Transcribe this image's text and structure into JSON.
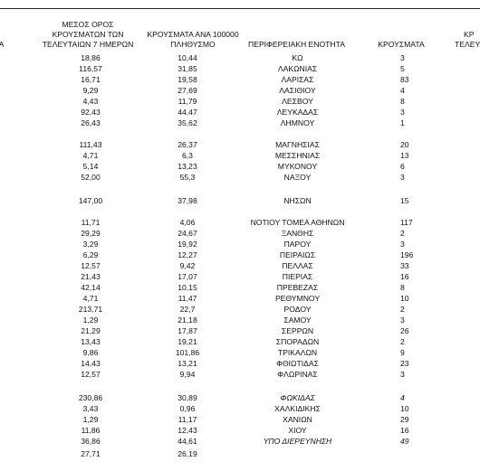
{
  "header": {
    "partial_left": "ΤΑ",
    "avg_col": [
      "ΜΕΣΟΣ ΟΡΟΣ",
      "ΚΡΟΥΣΜΑΤΩΝ ΤΩΝ",
      "ΤΕΛΕΥΤΑΙΩΝ 7 ΗΜΕΡΩΝ"
    ],
    "rate_col": [
      "ΚΡΟΥΣΜΑΤΑ ΑΝΑ 100000",
      "ΠΛΗΘΥΣΜΟ"
    ],
    "unit_col": "ΠΕΡΙΦΕΡΕΙΑΚΗ ΕΝΟΤΗΤΑ",
    "cases_col": "ΚΡΟΥΣΜΑΤΑ",
    "partial_right": [
      "ΚΡ",
      "ΤΕΛΕΥ"
    ]
  },
  "rows": [
    {
      "avg": "18,86",
      "rate": "10,44",
      "unit": "ΚΩ",
      "cases": "3"
    },
    {
      "avg": "116,57",
      "rate": "31,85",
      "unit": "ΛΑΚΩΝΙΑΣ",
      "cases": "5"
    },
    {
      "avg": "16,71",
      "rate": "19,58",
      "unit": "ΛΑΡΙΣΑΣ",
      "cases": "83"
    },
    {
      "avg": "9,29",
      "rate": "27,69",
      "unit": "ΛΑΣΙΘΙΟΥ",
      "cases": "4"
    },
    {
      "avg": "4,43",
      "rate": "11,79",
      "unit": "ΛΕΣΒΟΥ",
      "cases": "8"
    },
    {
      "avg": "92,43",
      "rate": "44,47",
      "unit": "ΛΕΥΚΑΔΑΣ",
      "cases": "3"
    },
    {
      "avg": "26,43",
      "rate": "35,62",
      "unit": "ΛΗΜΝΟΥ",
      "cases": "1"
    },
    {
      "avg": "111,43",
      "rate": "26,37",
      "unit": "ΜΑΓΝΗΣΙΑΣ",
      "cases": "20"
    },
    {
      "avg": "4,71",
      "rate": "6,3",
      "unit": "ΜΕΣΣΗΝΙΑΣ",
      "cases": "13"
    },
    {
      "avg": "5,14",
      "rate": "13,23",
      "unit": "ΜΥΚΟΝΟΥ",
      "cases": "6"
    },
    {
      "avg": "52,00",
      "rate": "55,3",
      "unit": "ΝΑΞΟΥ",
      "cases": "3"
    },
    {
      "avg": "147,00",
      "rate": "37,98",
      "unit": "ΝΗΣΩΝ",
      "cases": "15"
    },
    {
      "avg": "11,71",
      "rate": "4,06",
      "unit": "ΝΟΤΙΟΥ ΤΟΜΕΑ ΑΘΗΝΩΝ",
      "cases": "117"
    },
    {
      "avg": "29,29",
      "rate": "24,67",
      "unit": "ΞΑΝΘΗΣ",
      "cases": "2"
    },
    {
      "avg": "3,29",
      "rate": "19,92",
      "unit": "ΠΑΡΟΥ",
      "cases": "3"
    },
    {
      "avg": "6,29",
      "rate": "12,27",
      "unit": "ΠΕΙΡΑΙΩΣ",
      "cases": "196"
    },
    {
      "avg": "12,57",
      "rate": "9,42",
      "unit": "ΠΕΛΛΑΣ",
      "cases": "33"
    },
    {
      "avg": "21,43",
      "rate": "17,07",
      "unit": "ΠΙΕΡΙΑΣ",
      "cases": "16"
    },
    {
      "avg": "42,14",
      "rate": "10,15",
      "unit": "ΠΡΕΒΕΖΑΣ",
      "cases": "8"
    },
    {
      "avg": "4,71",
      "rate": "11,47",
      "unit": "ΡΕΘΥΜΝΟΥ",
      "cases": "10"
    },
    {
      "avg": "213,71",
      "rate": "22,7",
      "unit": "ΡΟΔΟΥ",
      "cases": "2"
    },
    {
      "avg": "1,29",
      "rate": "21,18",
      "unit": "ΣΑΜΟΥ",
      "cases": "3"
    },
    {
      "avg": "21,29",
      "rate": "17,87",
      "unit": "ΣΕΡΡΩΝ",
      "cases": "26"
    },
    {
      "avg": "13,43",
      "rate": "19,21",
      "unit": "ΣΠΟΡΑΔΩΝ",
      "cases": "2"
    },
    {
      "avg": "9,86",
      "rate": "101,86",
      "unit": "ΤΡΙΚΑΛΩΝ",
      "cases": "9"
    },
    {
      "avg": "14,43",
      "rate": "13,21",
      "unit": "ΦΘΙΩΤΙΔΑΣ",
      "cases": "23"
    },
    {
      "avg": "12,57",
      "rate": "9,94",
      "unit": "ΦΛΩΡΙΝΑΣ",
      "cases": "3"
    },
    {
      "avg": "230,86",
      "rate": "30,89",
      "unit": "ΦΩΚΙΔΑΣ",
      "cases": "4",
      "italic": true
    },
    {
      "avg": "3,43",
      "rate": "0,96",
      "unit": "ΧΑΛΚΙΔΙΚΗΣ",
      "cases": "10"
    },
    {
      "avg": "1,29",
      "rate": "11,17",
      "unit": "ΧΑΝΙΩΝ",
      "cases": "29"
    },
    {
      "avg": "11,86",
      "rate": "12,43",
      "unit": "ΧΙΟΥ",
      "cases": "16"
    },
    {
      "avg": "36,86",
      "rate": "44,61",
      "unit": "ΥΠΟ ΔΙΕΡΕΥΝΗΣΗ",
      "cases": "49",
      "italic": true
    },
    {
      "avg": "27,71",
      "rate": "26,19",
      "unit": "",
      "cases": ""
    }
  ]
}
